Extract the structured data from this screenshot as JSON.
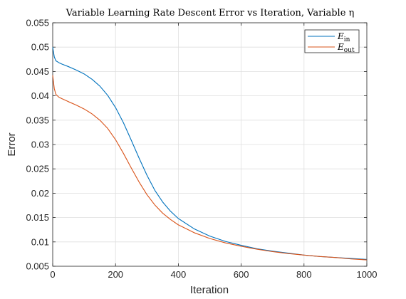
{
  "chart_data": {
    "type": "line",
    "title": "Variable Learning Rate Descent Error vs Iteration, Variable η",
    "xlabel": "Iteration",
    "ylabel": "Error",
    "xlim": [
      0,
      1000
    ],
    "ylim": [
      0.005,
      0.055
    ],
    "x_ticks": [
      "0",
      "200",
      "400",
      "600",
      "800",
      "1000"
    ],
    "y_ticks": [
      "0.005",
      "0.01",
      "0.015",
      "0.02",
      "0.025",
      "0.03",
      "0.035",
      "0.04",
      "0.045",
      "0.05",
      "0.055"
    ],
    "grid": true,
    "legend_position": "top-right",
    "series": [
      {
        "name_main": "E",
        "name_sub": "in",
        "color": "#0072BD",
        "x": [
          0,
          5,
          10,
          20,
          30,
          50,
          75,
          100,
          125,
          150,
          175,
          200,
          225,
          250,
          275,
          300,
          325,
          350,
          375,
          400,
          450,
          500,
          550,
          600,
          650,
          700,
          750,
          800,
          850,
          900,
          950,
          1000
        ],
        "y": [
          0.05,
          0.048,
          0.0472,
          0.0468,
          0.0465,
          0.046,
          0.0453,
          0.0445,
          0.0434,
          0.042,
          0.0401,
          0.0376,
          0.0345,
          0.0309,
          0.0272,
          0.0237,
          0.0206,
          0.0182,
          0.0163,
          0.0148,
          0.0127,
          0.0112,
          0.0101,
          0.0093,
          0.0086,
          0.0081,
          0.0077,
          0.0073,
          0.007,
          0.0068,
          0.0066,
          0.0064
        ]
      },
      {
        "name_main": "E",
        "name_sub": "out",
        "color": "#D95319",
        "x": [
          0,
          5,
          10,
          20,
          30,
          50,
          75,
          100,
          125,
          150,
          175,
          200,
          225,
          250,
          275,
          300,
          325,
          350,
          375,
          400,
          450,
          500,
          550,
          600,
          650,
          700,
          750,
          800,
          850,
          900,
          950,
          1000
        ],
        "y": [
          0.0442,
          0.0415,
          0.0403,
          0.0397,
          0.0394,
          0.0388,
          0.0381,
          0.0373,
          0.0363,
          0.035,
          0.0333,
          0.031,
          0.0282,
          0.0252,
          0.0223,
          0.0197,
          0.0176,
          0.0159,
          0.0146,
          0.0135,
          0.0119,
          0.0107,
          0.0098,
          0.0091,
          0.0085,
          0.008,
          0.0076,
          0.0073,
          0.007,
          0.0068,
          0.0065,
          0.0063
        ]
      }
    ]
  }
}
